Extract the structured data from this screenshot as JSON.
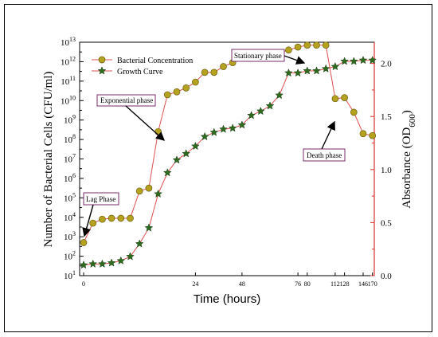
{
  "chart_data": {
    "type": "line",
    "xlabel": "Time (hours)",
    "ylabel_left": "Number of Bacterial Cells (CFU/ml)",
    "ylabel_right_main": "Absorbance (OD",
    "ylabel_right_sub": "600",
    "ylabel_right_close": ")",
    "x_ticks": [
      "0",
      "24",
      "48",
      "76",
      "80",
      "112",
      "128",
      "146",
      "170"
    ],
    "y_left_base": "10",
    "y_left_exponents": [
      "1",
      "2",
      "3",
      "4",
      "5",
      "6",
      "7",
      "8",
      "9",
      "10",
      "11",
      "12",
      "13"
    ],
    "y_right_ticks": [
      "0.0",
      "0.5",
      "1.0",
      "1.5",
      "2.0"
    ],
    "ylim_left_log10": [
      1,
      13
    ],
    "ylim_right": [
      0,
      2.2
    ],
    "legend": {
      "position": "top-left",
      "entries": [
        "Bacterial Concentration",
        "Growth Curve"
      ]
    },
    "colors": {
      "concentration_marker": "#b5a21f",
      "concentration_line": "#e05050",
      "growth_marker": "#2e6b1e",
      "growth_line": "#e05050",
      "right_axis": "#e03030",
      "annotation_box": "#7a2a6a"
    },
    "series": [
      {
        "name": "Bacterial Concentration",
        "axis": "left",
        "x_index": [
          0,
          1,
          2,
          3,
          4,
          5,
          6,
          7,
          8,
          9,
          10,
          11,
          12,
          13,
          14,
          15,
          16,
          17,
          18,
          19,
          20,
          21,
          22,
          23,
          24,
          25,
          26,
          27,
          28,
          29,
          30,
          31
        ],
        "log10_values": [
          2.7,
          3.7,
          3.9,
          3.95,
          3.95,
          3.95,
          5.35,
          5.5,
          8.4,
          10.3,
          10.45,
          10.65,
          10.95,
          11.45,
          11.45,
          11.75,
          11.95,
          12.2,
          12.3,
          12.4,
          12.4,
          12.45,
          12.6,
          12.75,
          12.85,
          12.85,
          12.85,
          10.1,
          10.15,
          9.4,
          8.3,
          8.2
        ]
      },
      {
        "name": "Growth Curve",
        "axis": "right",
        "x_index": [
          0,
          1,
          2,
          3,
          4,
          5,
          6,
          7,
          8,
          9,
          10,
          11,
          12,
          13,
          14,
          15,
          16,
          17,
          18,
          19,
          20,
          21,
          22,
          23,
          24,
          25,
          26,
          27,
          28,
          29,
          30,
          31
        ],
        "values": [
          0.1,
          0.11,
          0.11,
          0.12,
          0.14,
          0.18,
          0.3,
          0.45,
          0.77,
          0.97,
          1.09,
          1.15,
          1.22,
          1.31,
          1.35,
          1.38,
          1.39,
          1.42,
          1.51,
          1.55,
          1.6,
          1.7,
          1.91,
          1.91,
          1.93,
          1.93,
          1.95,
          1.97,
          2.02,
          2.02,
          2.03,
          2.03
        ]
      }
    ],
    "annotations": [
      {
        "text": "Lag Phase",
        "target_index": 0,
        "target_log10": 2.7
      },
      {
        "text": "Exponential phase",
        "target_index": 9,
        "target_log10": 10.3
      },
      {
        "text": "Stationary phase",
        "target_index": 25,
        "target_log10": 12.85
      },
      {
        "text": "Death phase",
        "target_index": 28,
        "target_log10": 10.15
      }
    ]
  }
}
